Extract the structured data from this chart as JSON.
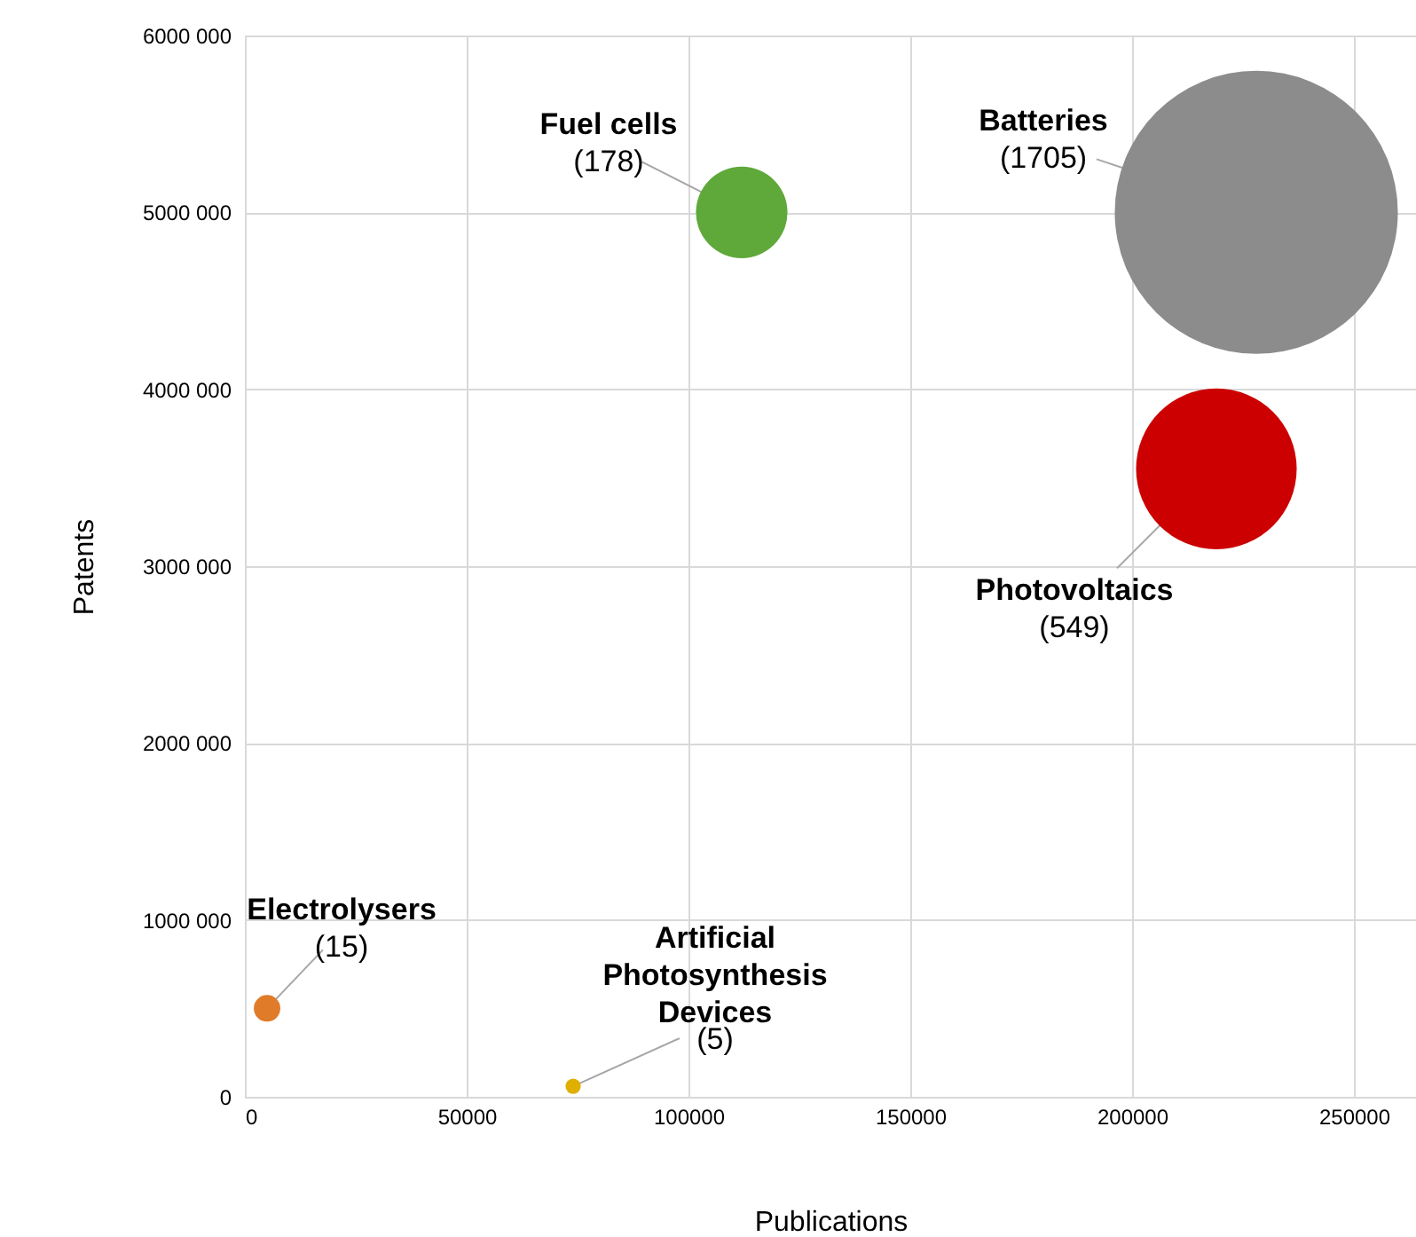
{
  "chart_data": {
    "type": "bubble",
    "xlabel": "Publications",
    "ylabel": "Patents",
    "xlim": [
      0,
      264000
    ],
    "xticks": [
      0,
      50000,
      100000,
      150000,
      200000,
      250000
    ],
    "ylim": [
      0,
      6000000
    ],
    "yticks": [
      0,
      {
        "value": 1000000,
        "label": "1000 000"
      },
      {
        "value": 2000000,
        "label": "2000 000"
      },
      {
        "value": 3000000,
        "label": "3000 000"
      },
      {
        "value": 4000000,
        "label": "4000 000"
      },
      {
        "value": 5000000,
        "label": "5000 000"
      },
      {
        "value": 6000000,
        "label": "6000 000"
      }
    ],
    "grid": true,
    "series": [
      {
        "name": "Batteries",
        "color": "#8c8c8c",
        "x": [
          228000
        ],
        "values": [
          5000000
        ],
        "sizes": [
          1705
        ],
        "value_labels": [
          "(1705)"
        ]
      },
      {
        "name": "Photovoltaics",
        "color": "#cc0000",
        "x": [
          219000
        ],
        "values": [
          3550000
        ],
        "sizes": [
          549
        ],
        "value_labels": [
          "(549)"
        ]
      },
      {
        "name": "Fuel cells",
        "color": "#5fa83a",
        "x": [
          112000
        ],
        "values": [
          5000000
        ],
        "sizes": [
          178
        ],
        "value_labels": [
          "(178)"
        ]
      },
      {
        "name": "Electrolysers",
        "color": "#e07b2a",
        "x": [
          5000
        ],
        "values": [
          500000
        ],
        "sizes": [
          15
        ],
        "value_labels": [
          "(15)"
        ]
      },
      {
        "name": "Artificial Photosynthesis Devices",
        "color": "#e0b000",
        "x": [
          74000
        ],
        "values": [
          60000
        ],
        "sizes": [
          5
        ],
        "value_labels": [
          "(5)"
        ]
      }
    ]
  }
}
